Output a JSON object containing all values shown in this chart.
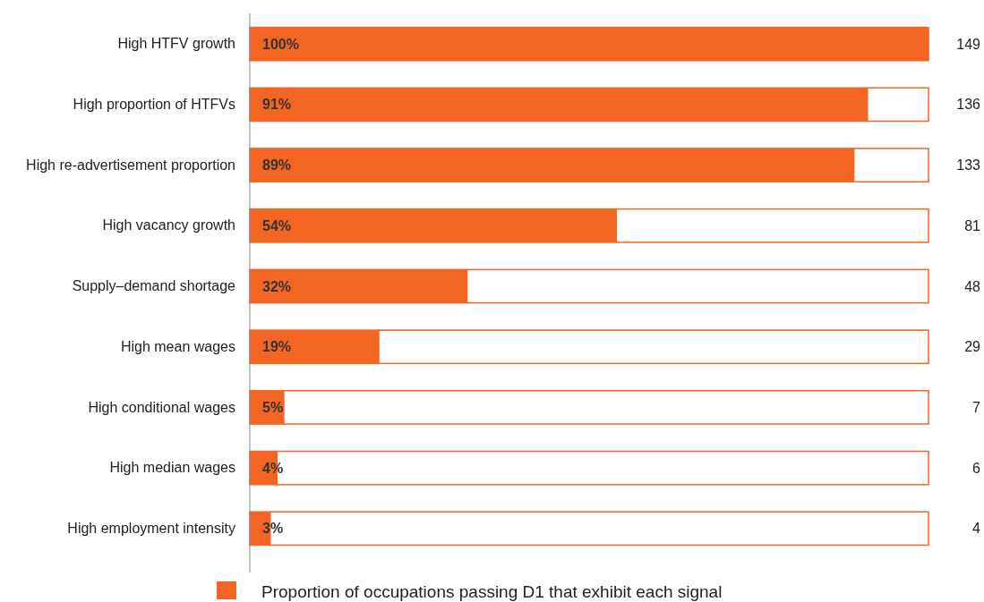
{
  "chart_data": {
    "type": "bar",
    "orientation": "horizontal",
    "stacked": true,
    "categories": [
      "High HTFV growth",
      "High proportion of HTFVs",
      "High re-advertisement proportion",
      "High vacancy growth",
      "Supply–demand shortage",
      "High mean wages",
      "High conditional wages",
      "High median wages",
      "High employment intensity"
    ],
    "series": [
      {
        "name": "Proportion of occupations passing D1 that exhibit each signal",
        "color": "#f26522",
        "values": [
          100,
          91,
          89,
          54,
          32,
          19,
          5,
          4,
          3
        ],
        "value_labels": [
          "100%",
          "91%",
          "89%",
          "54%",
          "32%",
          "19%",
          "5%",
          "4%",
          "3%"
        ]
      },
      {
        "color": "#ffffff",
        "values": [
          0,
          9,
          11,
          46,
          68,
          81,
          95,
          96,
          97
        ]
      }
    ],
    "xlim": [
      0,
      100
    ],
    "tick_labels": "y",
    "legend": "bottom",
    "annotations": [
      "149",
      "136",
      "133",
      "81",
      "48",
      "29",
      "7",
      "6",
      "4"
    ]
  }
}
